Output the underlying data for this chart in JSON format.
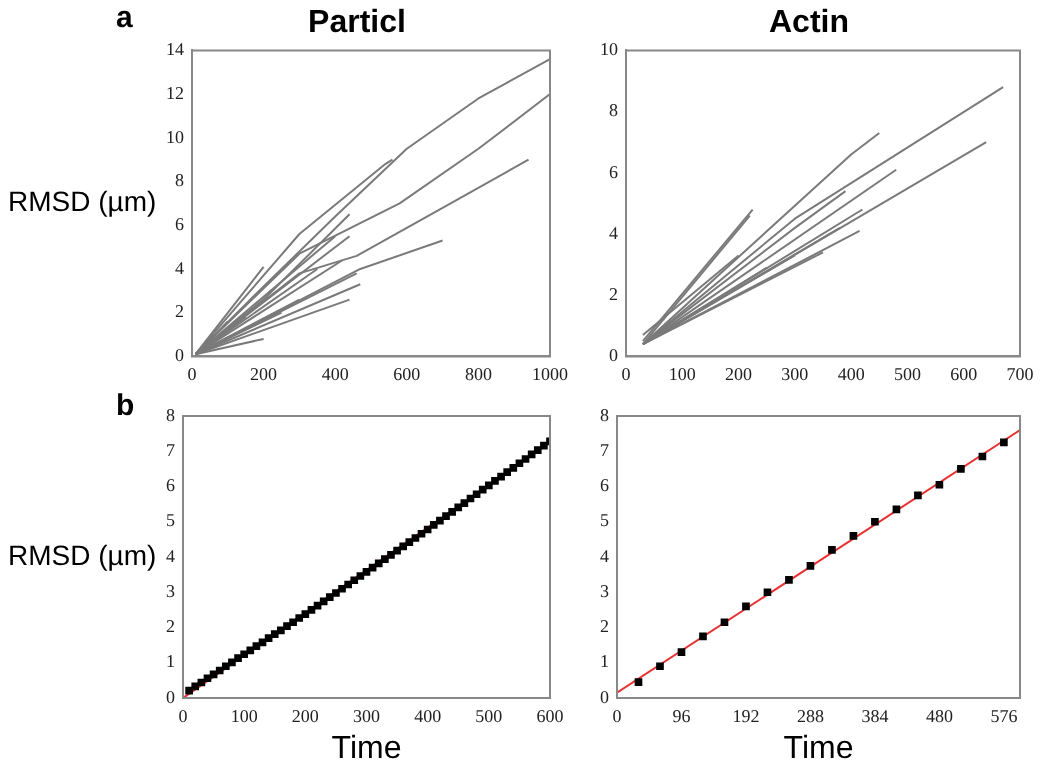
{
  "chart_data": [
    {
      "type": "line",
      "title": "Particl",
      "ylabel": "RMSD (µm)",
      "annotations": [
        "a"
      ],
      "xlim": [
        0,
        1000
      ],
      "ylim": [
        0,
        14
      ],
      "xticks": [
        0,
        200,
        400,
        600,
        800,
        1000
      ],
      "yticks": [
        0,
        2,
        4,
        6,
        8,
        10,
        12,
        14
      ],
      "grid": false,
      "legend": false,
      "marker": "none",
      "series": [
        {
          "color": "#7a7a7a",
          "x": [
            10,
            200,
            400,
            600,
            800,
            1000
          ],
          "values": [
            0.1,
            3.2,
            6.4,
            9.5,
            11.8,
            13.6
          ]
        },
        {
          "color": "#7a7a7a",
          "x": [
            10,
            300,
            580,
            800,
            1000
          ],
          "values": [
            0.1,
            4.7,
            7,
            9.5,
            12
          ]
        },
        {
          "color": "#7a7a7a",
          "x": [
            10,
            300,
            460,
            700,
            940
          ],
          "values": [
            0.1,
            3.8,
            4.6,
            6.8,
            9
          ]
        },
        {
          "color": "#7a7a7a",
          "x": [
            10,
            470,
            700
          ],
          "values": [
            0.1,
            4,
            5.3
          ]
        },
        {
          "color": "#7a7a7a",
          "x": [
            10,
            300,
            540,
            560
          ],
          "values": [
            0.1,
            5.6,
            8.8,
            9
          ]
        },
        {
          "color": "#7a7a7a",
          "x": [
            10,
            200
          ],
          "values": [
            0.1,
            4.1
          ]
        },
        {
          "color": "#7a7a7a",
          "x": [
            10,
            200,
            440
          ],
          "values": [
            0.1,
            2.6,
            6.5
          ]
        },
        {
          "color": "#7a7a7a",
          "x": [
            10,
            440
          ],
          "values": [
            0.1,
            5.5
          ]
        },
        {
          "color": "#7a7a7a",
          "x": [
            10,
            470
          ],
          "values": [
            0.1,
            3.3
          ]
        },
        {
          "color": "#7a7a7a",
          "x": [
            10,
            440
          ],
          "values": [
            0.1,
            2.6
          ]
        },
        {
          "color": "#7a7a7a",
          "x": [
            10,
            200
          ],
          "values": [
            0.1,
            0.8
          ]
        },
        {
          "color": "#7a7a7a",
          "x": [
            10,
            150
          ],
          "values": [
            0.1,
            1.8
          ]
        },
        {
          "color": "#7a7a7a",
          "x": [
            10,
            420
          ],
          "values": [
            0.1,
            4.4
          ]
        },
        {
          "color": "#7a7a7a",
          "x": [
            10,
            460
          ],
          "values": [
            0.1,
            3.8
          ]
        },
        {
          "color": "#7a7a7a",
          "x": [
            10,
            350
          ],
          "values": [
            0.1,
            4
          ]
        },
        {
          "color": "#7a7a7a",
          "x": [
            10,
            250
          ],
          "values": [
            0.1,
            2
          ]
        },
        {
          "color": "#7a7a7a",
          "x": [
            10,
            100
          ],
          "values": [
            0.1,
            1.6
          ]
        },
        {
          "color": "#7a7a7a",
          "x": [
            10,
            300
          ],
          "values": [
            0.1,
            2.6
          ]
        },
        {
          "color": "#7a7a7a",
          "x": [
            10,
            400
          ],
          "values": [
            0.1,
            5.5
          ]
        }
      ]
    },
    {
      "type": "line",
      "title": "Actin",
      "xlim": [
        0,
        700
      ],
      "ylim": [
        0,
        10
      ],
      "xticks": [
        0,
        100,
        200,
        300,
        400,
        500,
        600,
        700
      ],
      "yticks": [
        0,
        2,
        4,
        6,
        8,
        10
      ],
      "grid": false,
      "legend": false,
      "marker": "none",
      "series": [
        {
          "color": "#7a7a7a",
          "x": [
            30,
            225
          ],
          "values": [
            0.5,
            4.8
          ]
        },
        {
          "color": "#7a7a7a",
          "x": [
            30,
            220
          ],
          "values": [
            0.4,
            4.6
          ]
        },
        {
          "color": "#7a7a7a",
          "x": [
            30,
            400,
            450
          ],
          "values": [
            0.4,
            6.6,
            7.3
          ]
        },
        {
          "color": "#7a7a7a",
          "x": [
            30,
            300,
            670
          ],
          "values": [
            0.4,
            4.5,
            8.8
          ]
        },
        {
          "color": "#7a7a7a",
          "x": [
            30,
            300,
            390
          ],
          "values": [
            0.4,
            4.2,
            5.4
          ]
        },
        {
          "color": "#7a7a7a",
          "x": [
            30,
            480
          ],
          "values": [
            0.4,
            6.1
          ]
        },
        {
          "color": "#7a7a7a",
          "x": [
            30,
            640
          ],
          "values": [
            0.4,
            7
          ]
        },
        {
          "color": "#7a7a7a",
          "x": [
            30,
            420
          ],
          "values": [
            0.4,
            4.8
          ]
        },
        {
          "color": "#7a7a7a",
          "x": [
            30,
            415
          ],
          "values": [
            0.4,
            4.1
          ]
        },
        {
          "color": "#7a7a7a",
          "x": [
            30,
            350
          ],
          "values": [
            0.4,
            3.4
          ]
        },
        {
          "color": "#7a7a7a",
          "x": [
            30,
            380
          ],
          "values": [
            0.4,
            4.2
          ]
        },
        {
          "color": "#7a7a7a",
          "x": [
            30,
            300
          ],
          "values": [
            0.4,
            3.3
          ]
        },
        {
          "color": "#7a7a7a",
          "x": [
            30,
            200
          ],
          "values": [
            0.7,
            3.3
          ]
        },
        {
          "color": "#7a7a7a",
          "x": [
            30,
            250
          ],
          "values": [
            0.4,
            2.9
          ]
        }
      ]
    },
    {
      "type": "scatter",
      "xlabel": "Time",
      "ylabel": "RMSD (µm)",
      "annotations": [
        "b"
      ],
      "xlim": [
        0,
        600
      ],
      "ylim": [
        0,
        8
      ],
      "xticks": [
        0,
        100,
        200,
        300,
        400,
        500,
        600
      ],
      "yticks": [
        0,
        1,
        2,
        3,
        4,
        5,
        6,
        7,
        8
      ],
      "grid": false,
      "legend": false,
      "series": [
        {
          "marker": "square",
          "color": "#000000",
          "x": [
            10,
            20,
            30,
            40,
            50,
            60,
            70,
            80,
            90,
            100,
            110,
            120,
            130,
            140,
            150,
            160,
            170,
            180,
            190,
            200,
            210,
            220,
            230,
            240,
            250,
            260,
            270,
            280,
            290,
            300,
            310,
            320,
            330,
            340,
            350,
            360,
            370,
            380,
            390,
            400,
            410,
            420,
            430,
            440,
            450,
            460,
            470,
            480,
            490,
            500,
            510,
            520,
            530,
            540,
            550,
            560,
            570,
            580,
            590,
            600
          ],
          "values": [
            0.21,
            0.33,
            0.44,
            0.56,
            0.67,
            0.78,
            0.9,
            1.01,
            1.13,
            1.24,
            1.35,
            1.47,
            1.58,
            1.7,
            1.81,
            1.92,
            2.04,
            2.15,
            2.27,
            2.38,
            2.5,
            2.62,
            2.74,
            2.86,
            2.98,
            3.1,
            3.22,
            3.34,
            3.46,
            3.58,
            3.7,
            3.82,
            3.94,
            4.06,
            4.18,
            4.3,
            4.42,
            4.54,
            4.66,
            4.78,
            4.91,
            5.03,
            5.16,
            5.28,
            5.41,
            5.53,
            5.66,
            5.78,
            5.91,
            6.03,
            6.16,
            6.28,
            6.41,
            6.53,
            6.66,
            6.78,
            6.91,
            7.03,
            7.16,
            7.28
          ]
        },
        {
          "type": "line",
          "marker": "none",
          "color": "#e83030",
          "x": [
            0,
            600
          ],
          "values": [
            0,
            7.25
          ]
        }
      ]
    },
    {
      "type": "scatter",
      "xlabel": "Time",
      "xlim": [
        0,
        600
      ],
      "ylim": [
        0,
        8
      ],
      "xticks": [
        0,
        96,
        192,
        288,
        384,
        480,
        576
      ],
      "yticks": [
        0,
        1,
        2,
        3,
        4,
        5,
        6,
        7,
        8
      ],
      "grid": false,
      "legend": false,
      "series": [
        {
          "marker": "square",
          "color": "#000000",
          "x": [
            32,
            64,
            96,
            128,
            160,
            192,
            224,
            256,
            288,
            320,
            352,
            384,
            416,
            448,
            480,
            512,
            544,
            576
          ],
          "values": [
            0.45,
            0.9,
            1.3,
            1.75,
            2.15,
            2.6,
            3,
            3.35,
            3.75,
            4.2,
            4.6,
            5,
            5.35,
            5.75,
            6.05,
            6.5,
            6.85,
            7.25
          ]
        },
        {
          "type": "line",
          "marker": "none",
          "color": "#e83030",
          "x": [
            0,
            600
          ],
          "values": [
            0.15,
            7.6
          ]
        }
      ]
    }
  ]
}
